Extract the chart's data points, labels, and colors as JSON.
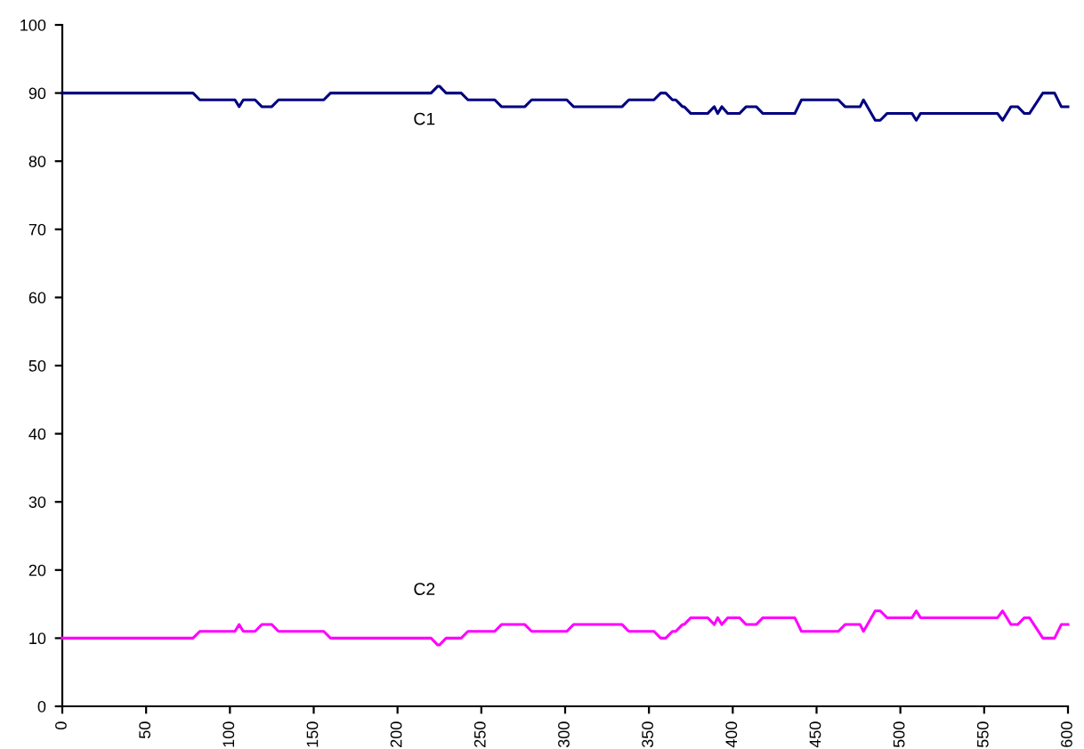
{
  "chart_data": {
    "type": "line",
    "x": [
      0,
      78,
      82,
      103,
      105.5,
      108,
      115,
      119,
      125,
      129,
      156,
      160,
      220,
      224,
      225,
      229,
      238,
      242,
      258,
      262,
      276,
      280,
      301,
      305,
      334,
      338,
      353,
      357,
      360,
      364,
      366,
      370,
      371,
      375,
      385,
      389,
      391,
      393.5,
      397,
      404,
      408,
      414,
      418,
      437,
      441,
      463,
      467,
      476,
      478,
      485,
      488,
      492,
      507,
      509.5,
      512,
      558,
      561,
      566,
      570,
      574,
      577,
      585,
      592,
      596,
      600
    ],
    "series": [
      {
        "color": "#000080",
        "values": [
          90,
          90,
          89,
          89,
          88,
          89,
          89,
          88,
          88,
          89,
          89,
          90,
          90,
          91,
          91,
          90,
          90,
          89,
          89,
          88,
          88,
          89,
          89,
          88,
          88,
          89,
          89,
          90,
          90,
          89,
          89,
          88,
          88,
          87,
          87,
          88,
          87,
          88,
          87,
          87,
          88,
          88,
          87,
          87,
          89,
          89,
          88,
          88,
          89,
          86,
          86,
          87,
          87,
          86,
          87,
          87,
          86,
          88,
          88,
          87,
          87,
          90,
          90,
          88,
          88
        ]
      },
      {
        "color": "#ff00ff",
        "values": [
          10,
          10,
          11,
          11,
          12,
          11,
          11,
          12,
          12,
          11,
          11,
          10,
          10,
          9,
          9,
          10,
          10,
          11,
          11,
          12,
          12,
          11,
          11,
          12,
          12,
          11,
          11,
          10,
          10,
          11,
          11,
          12,
          12,
          13,
          13,
          12,
          13,
          12,
          13,
          13,
          12,
          12,
          13,
          13,
          11,
          11,
          12,
          12,
          11,
          14,
          14,
          13,
          13,
          14,
          13,
          13,
          14,
          12,
          12,
          13,
          13,
          10,
          10,
          12,
          12
        ]
      }
    ],
    "annotations": [
      "C1",
      "C2"
    ],
    "xlim": [
      0,
      600
    ],
    "xticks": [
      0,
      50,
      100,
      150,
      200,
      250,
      300,
      350,
      400,
      450,
      500,
      550,
      600
    ],
    "ylim": [
      0,
      100
    ],
    "yticks": [
      0,
      10,
      20,
      30,
      40,
      50,
      60,
      70,
      80,
      90,
      100
    ],
    "grid": false,
    "marker": "none",
    "line_style": "solid"
  }
}
